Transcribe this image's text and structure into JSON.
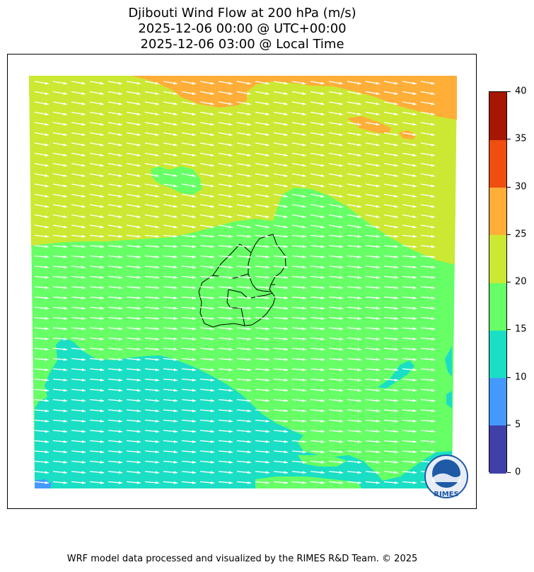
{
  "title": {
    "line1": "Djibouti Wind Flow at 200 hPa (m/s)",
    "line2": "2025-12-06 00:00 @ UTC+00:00",
    "line3": "2025-12-06 03:00 @ Local Time"
  },
  "colorbar": {
    "levels": [
      0,
      5,
      10,
      15,
      20,
      25,
      30,
      35,
      40
    ],
    "labels": [
      "0",
      "5",
      "10",
      "15",
      "20",
      "25",
      "30",
      "35",
      "40"
    ],
    "colors": [
      "#4040a8",
      "#4499ff",
      "#1adfc4",
      "#66ff66",
      "#cce833",
      "#ffae38",
      "#ef4e10",
      "#a61600"
    ]
  },
  "map": {
    "wind_direction": "east-southeast",
    "vector_color": "#ffffff",
    "boundary_color": "#000000"
  },
  "logo": {
    "text": "RIMES"
  },
  "footer": {
    "text": "WRF model data processed and visualized by the RIMES R&D Team. © 2025"
  }
}
